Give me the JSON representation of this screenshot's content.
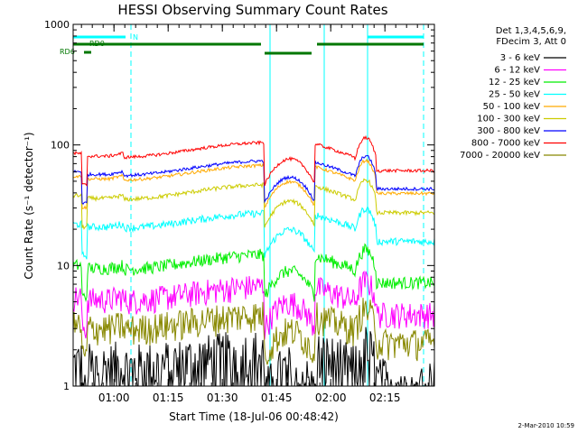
{
  "chart_data": {
    "type": "line",
    "title": "HESSI Observing Summary Count Rates",
    "ylabel": "Count Rate (s⁻¹ detector⁻¹)",
    "xlabel": "Start Time (18-Jul-06 00:48:42)",
    "ylog": true,
    "ylim": [
      1,
      1000
    ],
    "xlim_minutes_after_start": [
      0,
      100
    ],
    "y_ticks": [
      "1",
      "10",
      "100",
      "1000"
    ],
    "x_ticks": [
      {
        "label": "01:00",
        "t": 11.3
      },
      {
        "label": "01:15",
        "t": 26.3
      },
      {
        "label": "01:30",
        "t": 41.3
      },
      {
        "label": "01:45",
        "t": 56.3
      },
      {
        "label": "02:00",
        "t": 71.3
      },
      {
        "label": "02:15",
        "t": 86.3
      }
    ],
    "legend_header": [
      "Det 1,3,4,5,6,9,",
      "FDecim 3, Att 0"
    ],
    "legend_placement": "top-right",
    "series": [
      {
        "name": "3 - 6 keV",
        "color": "#000000",
        "base": 1.5,
        "noise": 0.6,
        "dropout": true
      },
      {
        "name": "6 - 12 keV",
        "color": "#ff00ff",
        "base": 5.5,
        "noise": 0.25,
        "dropout": false
      },
      {
        "name": "12 - 25 keV",
        "color": "#00ee00",
        "base": 10,
        "noise": 0.12,
        "dropout": false
      },
      {
        "name": "25 - 50 keV",
        "color": "#00ffff",
        "base": 22,
        "noise": 0.07,
        "dropout": false
      },
      {
        "name": "50 - 100 keV",
        "color": "#ffaa00",
        "base": 55,
        "noise": 0.03,
        "dropout": false
      },
      {
        "name": "100 - 300 keV",
        "color": "#cccc00",
        "base": 38,
        "noise": 0.04,
        "dropout": false
      },
      {
        "name": "300 - 800 keV",
        "color": "#0000ff",
        "base": 60,
        "noise": 0.03,
        "dropout": false
      },
      {
        "name": "800 - 7000 keV",
        "color": "#ff0000",
        "base": 85,
        "noise": 0.03,
        "dropout": false
      },
      {
        "name": "7000 - 20000 keV",
        "color": "#888800",
        "base": 3.2,
        "noise": 0.3,
        "dropout": false
      }
    ],
    "annotations": {
      "top_bar_label": "N",
      "rd_labels": [
        "RD0",
        "RD6"
      ],
      "saa_marks": [
        16,
        54.5,
        69.5,
        81.5,
        97
      ],
      "colors": {
        "cyan": "#00ffff",
        "green": "#007700",
        "axis": "#000000"
      }
    }
  },
  "timestamp": "2-Mar-2010 10:59"
}
